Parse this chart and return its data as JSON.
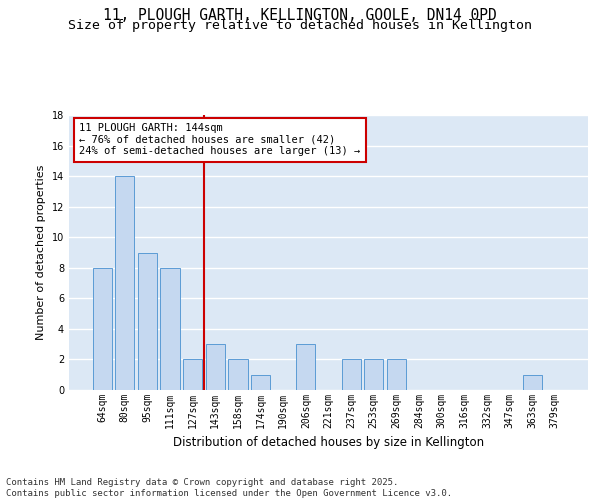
{
  "title": "11, PLOUGH GARTH, KELLINGTON, GOOLE, DN14 0PD",
  "subtitle": "Size of property relative to detached houses in Kellington",
  "xlabel": "Distribution of detached houses by size in Kellington",
  "ylabel": "Number of detached properties",
  "categories": [
    "64sqm",
    "80sqm",
    "95sqm",
    "111sqm",
    "127sqm",
    "143sqm",
    "158sqm",
    "174sqm",
    "190sqm",
    "206sqm",
    "221sqm",
    "237sqm",
    "253sqm",
    "269sqm",
    "284sqm",
    "300sqm",
    "316sqm",
    "332sqm",
    "347sqm",
    "363sqm",
    "379sqm"
  ],
  "values": [
    8,
    14,
    9,
    8,
    2,
    3,
    2,
    1,
    0,
    3,
    0,
    2,
    2,
    2,
    0,
    0,
    0,
    0,
    0,
    1,
    0
  ],
  "bar_color": "#c5d8f0",
  "bar_edge_color": "#5b9bd5",
  "vline_index": 5,
  "vline_color": "#cc0000",
  "annotation_text": "11 PLOUGH GARTH: 144sqm\n← 76% of detached houses are smaller (42)\n24% of semi-detached houses are larger (13) →",
  "annotation_box_color": "#cc0000",
  "background_color": "#dce8f5",
  "ylim": [
    0,
    18
  ],
  "yticks": [
    0,
    2,
    4,
    6,
    8,
    10,
    12,
    14,
    16,
    18
  ],
  "grid_color": "#ffffff",
  "footer_text": "Contains HM Land Registry data © Crown copyright and database right 2025.\nContains public sector information licensed under the Open Government Licence v3.0.",
  "title_fontsize": 10.5,
  "subtitle_fontsize": 9.5,
  "xlabel_fontsize": 8.5,
  "ylabel_fontsize": 8,
  "tick_fontsize": 7,
  "footer_fontsize": 6.5,
  "ann_fontsize": 7.5
}
